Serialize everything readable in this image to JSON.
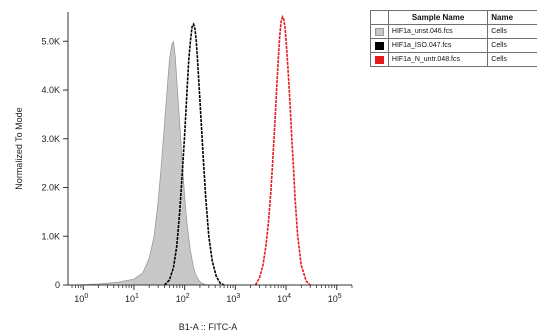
{
  "chart_data": {
    "type": "area",
    "title": "",
    "xlabel": "B1-A :: FITC-A",
    "ylabel": "Normalized To Mode",
    "x_scale": "log",
    "xlim": [
      0.5,
      200000
    ],
    "ylim": [
      0,
      5600
    ],
    "x_ticks": [
      {
        "base": "10",
        "exp": "0"
      },
      {
        "base": "10",
        "exp": "1"
      },
      {
        "base": "10",
        "exp": "2"
      },
      {
        "base": "10",
        "exp": "3"
      },
      {
        "base": "10",
        "exp": "4"
      },
      {
        "base": "10",
        "exp": "5"
      }
    ],
    "x_tick_values": [
      1,
      10,
      100,
      1000,
      10000,
      100000
    ],
    "y_ticks": [
      "0",
      "1.0K",
      "2.0K",
      "3.0K",
      "4.0K",
      "5.0K"
    ],
    "y_tick_values": [
      0,
      1000,
      2000,
      3000,
      4000,
      5000
    ],
    "grid": false,
    "legend_position": "top-right",
    "series": [
      {
        "name": "HIF1a_unst.046.fcs",
        "color": "#c8c8c8",
        "stroke": "#9a9a9a",
        "style": "filled",
        "x": [
          0.7,
          2,
          5,
          10,
          15,
          20,
          25,
          30,
          35,
          40,
          45,
          50,
          55,
          60,
          65,
          70,
          80,
          90,
          100,
          110,
          130,
          150,
          170,
          200,
          250,
          300
        ],
        "y": [
          0,
          20,
          60,
          120,
          250,
          550,
          1000,
          1700,
          2500,
          3300,
          4000,
          4600,
          4900,
          5000,
          4700,
          4200,
          3300,
          2500,
          1800,
          1300,
          700,
          350,
          180,
          60,
          10,
          0
        ]
      },
      {
        "name": "HIF1a_ISO.047.fcs",
        "color": "#000000",
        "stroke": "#000000",
        "style": "line",
        "x": [
          40,
          50,
          60,
          70,
          80,
          90,
          100,
          110,
          120,
          130,
          140,
          150,
          160,
          170,
          180,
          200,
          230,
          260,
          300,
          350,
          420,
          500,
          600
        ],
        "y": [
          0,
          100,
          350,
          800,
          1500,
          2300,
          3100,
          3900,
          4600,
          5000,
          5300,
          5350,
          5250,
          5000,
          4600,
          3800,
          2700,
          1800,
          1000,
          500,
          180,
          40,
          0
        ]
      },
      {
        "name": "HIF1a_N_untr.048.fcs",
        "color": "#e41a1c",
        "stroke": "#e41a1c",
        "style": "line",
        "x": [
          2500,
          3000,
          3500,
          4000,
          4500,
          5000,
          5500,
          6000,
          6500,
          7000,
          7500,
          8000,
          8500,
          9000,
          9500,
          10000,
          11000,
          12000,
          13000,
          14000,
          15000,
          17000,
          20000,
          25000,
          30000
        ],
        "y": [
          0,
          150,
          400,
          800,
          1300,
          1900,
          2600,
          3300,
          4000,
          4600,
          5100,
          5400,
          5500,
          5450,
          5300,
          5050,
          4400,
          3700,
          3000,
          2400,
          1800,
          1000,
          400,
          80,
          0
        ]
      }
    ]
  },
  "legend": {
    "col_sample_header": "Sample Name",
    "col_name_header": "Name",
    "rows": [
      {
        "sample": "HIF1a_unst.046.fcs",
        "name": "Cells",
        "swatch": "#c8c8c8"
      },
      {
        "sample": "HIF1a_ISO.047.fcs",
        "name": "Cells",
        "swatch": "#000000"
      },
      {
        "sample": "HIF1a_N_untr.048.fcs",
        "name": "Cells",
        "swatch": "#e41a1c"
      }
    ]
  }
}
